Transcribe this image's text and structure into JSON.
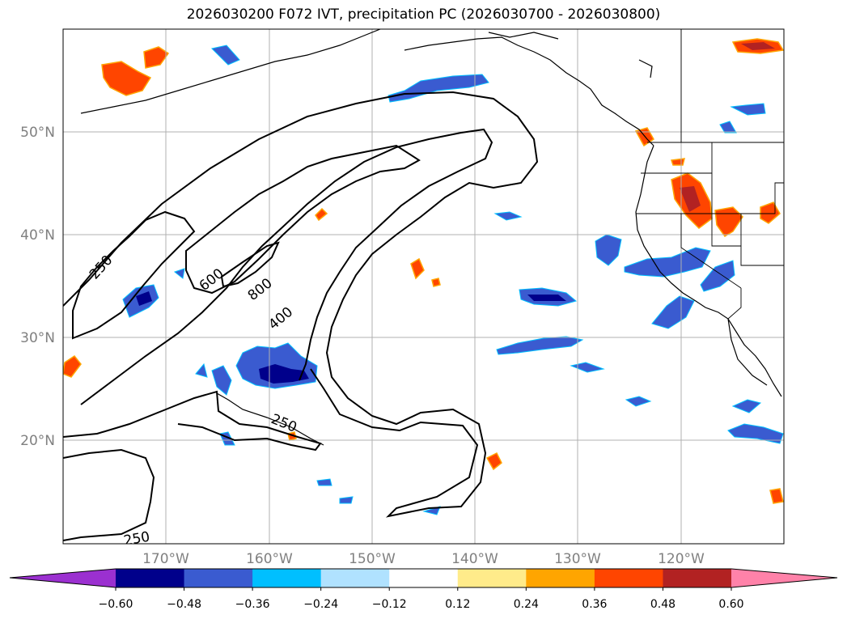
{
  "title": "2026030200 F072 IVT, precipitation PC (2026030700 - 2026030800)",
  "lat_labels": [
    "50°N",
    "40°N",
    "30°N",
    "20°N"
  ],
  "lon_labels": [
    "170°W",
    "160°W",
    "150°W",
    "140°W",
    "130°W",
    "120°W"
  ],
  "ivt_contours": [
    {
      "level": 250,
      "label": "250"
    },
    {
      "level": 400,
      "label": "400"
    },
    {
      "level": 600,
      "label": "600"
    },
    {
      "level": 800,
      "label": "800"
    }
  ],
  "colorbar": {
    "tick_labels": [
      "−0.60",
      "−0.48",
      "−0.36",
      "−0.24",
      "−0.12",
      "0.12",
      "0.24",
      "0.36",
      "0.48",
      "0.60"
    ],
    "colors": {
      "under": "#9b30d0",
      "bins": [
        "#00008b",
        "#3a5bd0",
        "#00bfff",
        "#b0e2ff",
        "#ffffff",
        "#ffeb8a",
        "#ffa500",
        "#ff4500",
        "#b22222"
      ],
      "over": "#ff82a9"
    }
  },
  "colors": {
    "neg_strong": "#00008b",
    "neg_mid": "#3a5bd0",
    "neg_light": "#00bfff",
    "neg_faint": "#b0e2ff",
    "pos_faint": "#ffeb8a",
    "pos_light": "#ffa500",
    "pos_mid": "#ff4500",
    "pos_strong": "#b22222",
    "grid": "#b0b0b0",
    "axis_label": "#808080"
  }
}
